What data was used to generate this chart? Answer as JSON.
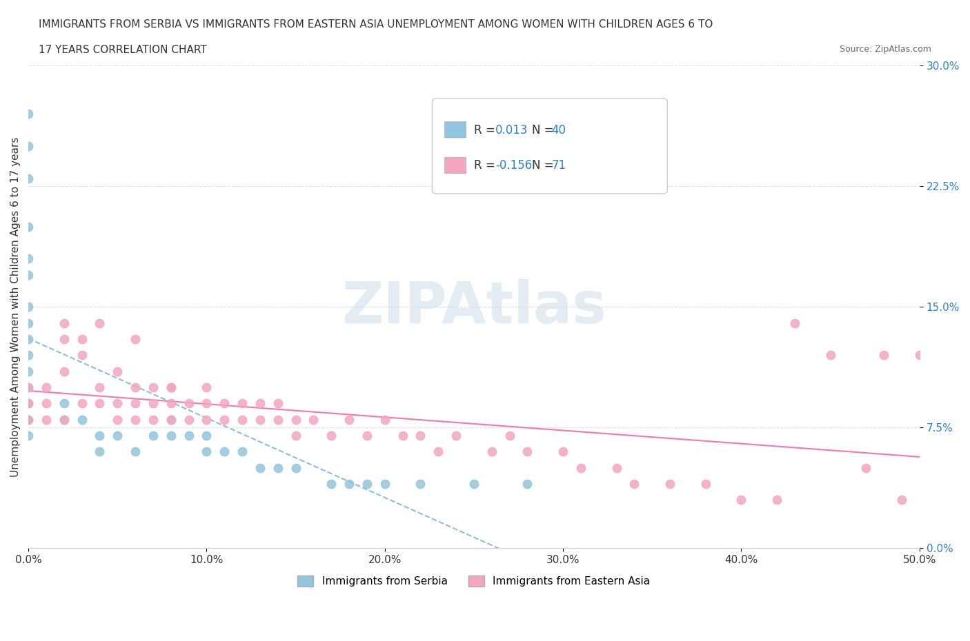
{
  "title_line1": "IMMIGRANTS FROM SERBIA VS IMMIGRANTS FROM EASTERN ASIA UNEMPLOYMENT AMONG WOMEN WITH CHILDREN AGES 6 TO",
  "title_line2": "17 YEARS CORRELATION CHART",
  "source": "Source: ZipAtlas.com",
  "ylabel": "Unemployment Among Women with Children Ages 6 to 17 years",
  "xlabel": "",
  "xlim": [
    0.0,
    0.5
  ],
  "ylim": [
    0.0,
    0.3
  ],
  "xticks": [
    0.0,
    0.1,
    0.2,
    0.3,
    0.4,
    0.5
  ],
  "yticks_right": [
    0.0,
    0.075,
    0.15,
    0.225,
    0.3
  ],
  "ytick_labels_right": [
    "0.0%",
    "7.5%",
    "15.0%",
    "22.5%",
    "30.0%"
  ],
  "xtick_labels": [
    "0.0%",
    "10.0%",
    "20.0%",
    "30.0%",
    "40.0%",
    "50.0%"
  ],
  "serbia_color": "#92C5DE",
  "eastern_asia_color": "#F4A6C0",
  "serbia_line_color": "#6baed6",
  "eastern_asia_line_color": "#f768a1",
  "legend_box_color": "#f0f0f0",
  "watermark_text": "ZIPAtlas",
  "watermark_color": "#c8d8e8",
  "R_serbia": 0.013,
  "N_serbia": 40,
  "R_eastern_asia": -0.156,
  "N_eastern_asia": 71,
  "serbia_points_x": [
    0.0,
    0.0,
    0.0,
    0.0,
    0.0,
    0.0,
    0.0,
    0.0,
    0.0,
    0.0,
    0.0,
    0.0,
    0.0,
    0.0,
    0.0,
    0.02,
    0.02,
    0.03,
    0.04,
    0.04,
    0.05,
    0.06,
    0.07,
    0.08,
    0.08,
    0.09,
    0.1,
    0.1,
    0.11,
    0.12,
    0.13,
    0.14,
    0.15,
    0.17,
    0.18,
    0.19,
    0.2,
    0.22,
    0.25,
    0.28
  ],
  "serbia_points_y": [
    0.27,
    0.25,
    0.23,
    0.2,
    0.18,
    0.17,
    0.15,
    0.14,
    0.13,
    0.12,
    0.11,
    0.1,
    0.09,
    0.08,
    0.07,
    0.09,
    0.08,
    0.08,
    0.07,
    0.06,
    0.07,
    0.06,
    0.07,
    0.07,
    0.08,
    0.07,
    0.07,
    0.06,
    0.06,
    0.06,
    0.05,
    0.05,
    0.05,
    0.04,
    0.04,
    0.04,
    0.04,
    0.04,
    0.04,
    0.04
  ],
  "eastern_asia_points_x": [
    0.0,
    0.0,
    0.0,
    0.01,
    0.01,
    0.01,
    0.02,
    0.02,
    0.02,
    0.03,
    0.03,
    0.04,
    0.04,
    0.05,
    0.05,
    0.05,
    0.06,
    0.06,
    0.06,
    0.07,
    0.07,
    0.07,
    0.08,
    0.08,
    0.08,
    0.09,
    0.09,
    0.1,
    0.1,
    0.1,
    0.11,
    0.11,
    0.12,
    0.12,
    0.13,
    0.13,
    0.14,
    0.14,
    0.15,
    0.15,
    0.16,
    0.17,
    0.18,
    0.19,
    0.2,
    0.21,
    0.22,
    0.23,
    0.24,
    0.26,
    0.27,
    0.28,
    0.3,
    0.31,
    0.33,
    0.34,
    0.36,
    0.38,
    0.4,
    0.42,
    0.43,
    0.45,
    0.47,
    0.48,
    0.49,
    0.5,
    0.02,
    0.03,
    0.04,
    0.06,
    0.08
  ],
  "eastern_asia_points_y": [
    0.1,
    0.09,
    0.08,
    0.1,
    0.09,
    0.08,
    0.13,
    0.11,
    0.08,
    0.12,
    0.09,
    0.1,
    0.09,
    0.11,
    0.09,
    0.08,
    0.1,
    0.09,
    0.08,
    0.1,
    0.09,
    0.08,
    0.1,
    0.09,
    0.08,
    0.09,
    0.08,
    0.1,
    0.09,
    0.08,
    0.09,
    0.08,
    0.09,
    0.08,
    0.09,
    0.08,
    0.09,
    0.08,
    0.08,
    0.07,
    0.08,
    0.07,
    0.08,
    0.07,
    0.08,
    0.07,
    0.07,
    0.06,
    0.07,
    0.06,
    0.07,
    0.06,
    0.06,
    0.05,
    0.05,
    0.04,
    0.04,
    0.04,
    0.03,
    0.03,
    0.14,
    0.12,
    0.05,
    0.12,
    0.03,
    0.12,
    0.14,
    0.13,
    0.14,
    0.13,
    0.1
  ]
}
